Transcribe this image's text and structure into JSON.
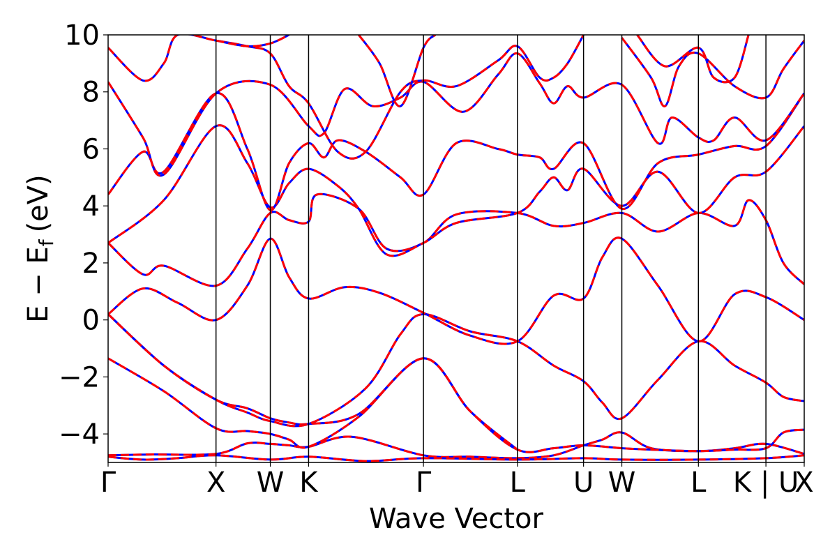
{
  "chart_data": {
    "type": "line",
    "title": "",
    "xlabel": "Wave Vector",
    "ylabel": "E − E",
    "ylabel_subscript": "f",
    "ylabel_unit": "(eV)",
    "ylim": [
      -5,
      10
    ],
    "xlim": [
      0,
      1
    ],
    "grid": false,
    "yticks": [
      -4,
      -2,
      0,
      2,
      4,
      6,
      8,
      10
    ],
    "ytick_labels": [
      "−4",
      "−2",
      "0",
      "2",
      "4",
      "6",
      "8",
      "10"
    ],
    "kpoints": [
      {
        "label": "Γ",
        "x": 0.0
      },
      {
        "label": "X",
        "x": 0.155
      },
      {
        "label": "W",
        "x": 0.233
      },
      {
        "label": "K",
        "x": 0.288
      },
      {
        "label": "Γ",
        "x": 0.453
      },
      {
        "label": "L",
        "x": 0.588
      },
      {
        "label": "U",
        "x": 0.683
      },
      {
        "label": "W",
        "x": 0.738
      },
      {
        "label": "L",
        "x": 0.848
      },
      {
        "label": "K | U",
        "x": 0.945
      },
      {
        "label": "X",
        "x": 1.0
      }
    ],
    "styles": [
      {
        "color": "#0000ff",
        "dash": "solid"
      },
      {
        "color": "#ff0000",
        "dash": "dashed"
      }
    ],
    "bands": [
      [
        [
          0,
          -4.75
        ],
        [
          0.06,
          -4.72
        ],
        [
          0.155,
          -4.7
        ],
        [
          0.2,
          -4.33
        ],
        [
          0.233,
          -4.35
        ],
        [
          0.26,
          -4.4
        ],
        [
          0.288,
          -4.45
        ],
        [
          0.35,
          -4.1
        ],
        [
          0.453,
          -4.75
        ],
        [
          0.52,
          -4.8
        ],
        [
          0.588,
          -4.85
        ],
        [
          0.64,
          -4.75
        ],
        [
          0.683,
          -4.4
        ],
        [
          0.71,
          -4.2
        ],
        [
          0.738,
          -3.95
        ],
        [
          0.78,
          -4.5
        ],
        [
          0.848,
          -4.6
        ],
        [
          0.9,
          -4.5
        ],
        [
          0.945,
          -4.35
        ],
        [
          1,
          -4.7
        ]
      ],
      [
        [
          0,
          -4.8
        ],
        [
          0.05,
          -4.9
        ],
        [
          0.1,
          -4.85
        ],
        [
          0.155,
          -4.75
        ],
        [
          0.233,
          -4.9
        ],
        [
          0.288,
          -4.8
        ],
        [
          0.37,
          -4.95
        ],
        [
          0.453,
          -4.85
        ],
        [
          0.588,
          -4.9
        ],
        [
          0.683,
          -4.85
        ],
        [
          0.738,
          -4.9
        ],
        [
          0.848,
          -4.9
        ],
        [
          0.945,
          -4.85
        ],
        [
          1,
          -4.75
        ]
      ],
      [
        [
          0,
          -1.35
        ],
        [
          0.08,
          -2.5
        ],
        [
          0.155,
          -3.8
        ],
        [
          0.2,
          -3.9
        ],
        [
          0.233,
          -4.0
        ],
        [
          0.26,
          -4.2
        ],
        [
          0.288,
          -4.45
        ],
        [
          0.36,
          -3.4
        ],
        [
          0.453,
          -1.35
        ],
        [
          0.52,
          -3.2
        ],
        [
          0.588,
          -4.55
        ],
        [
          0.64,
          -4.5
        ],
        [
          0.683,
          -4.4
        ],
        [
          0.738,
          -4.5
        ],
        [
          0.78,
          -4.55
        ],
        [
          0.848,
          -4.6
        ],
        [
          0.9,
          -4.55
        ],
        [
          0.945,
          -4.5
        ],
        [
          0.97,
          -3.95
        ],
        [
          1,
          -3.85
        ]
      ],
      [
        [
          0,
          0.2
        ],
        [
          0.08,
          -1.6
        ],
        [
          0.155,
          -2.8
        ],
        [
          0.2,
          -3.1
        ],
        [
          0.233,
          -3.45
        ],
        [
          0.26,
          -3.6
        ],
        [
          0.288,
          -3.65
        ],
        [
          0.36,
          -3.3
        ],
        [
          0.453,
          -1.35
        ],
        [
          0.52,
          -3.2
        ],
        [
          0.588,
          -4.55
        ]
      ],
      [
        [
          0,
          0.2
        ],
        [
          0.08,
          -1.6
        ],
        [
          0.155,
          -2.8
        ],
        [
          0.2,
          -3.25
        ],
        [
          0.233,
          -3.55
        ],
        [
          0.288,
          -3.65
        ],
        [
          0.37,
          -2.4
        ],
        [
          0.42,
          -0.5
        ],
        [
          0.453,
          0.2
        ],
        [
          0.52,
          -0.4
        ],
        [
          0.588,
          -0.75
        ],
        [
          0.64,
          -1.6
        ],
        [
          0.683,
          -2.15
        ],
        [
          0.71,
          -2.9
        ],
        [
          0.738,
          -3.45
        ],
        [
          0.79,
          -2.1
        ],
        [
          0.848,
          -0.75
        ],
        [
          0.9,
          -1.6
        ],
        [
          0.945,
          -2.2
        ],
        [
          0.97,
          -2.7
        ],
        [
          1,
          -2.85
        ]
      ],
      [
        [
          0,
          0.2
        ],
        [
          0.05,
          1.1
        ],
        [
          0.1,
          0.6
        ],
        [
          0.155,
          0.0
        ],
        [
          0.2,
          1.2
        ],
        [
          0.233,
          2.85
        ],
        [
          0.26,
          1.5
        ],
        [
          0.288,
          0.75
        ],
        [
          0.34,
          1.15
        ],
        [
          0.39,
          0.95
        ],
        [
          0.453,
          0.25
        ],
        [
          0.52,
          -0.55
        ],
        [
          0.588,
          -0.75
        ],
        [
          0.64,
          0.85
        ],
        [
          0.683,
          0.75
        ],
        [
          0.71,
          2.2
        ],
        [
          0.738,
          2.85
        ],
        [
          0.79,
          1.2
        ],
        [
          0.848,
          -0.75
        ],
        [
          0.9,
          0.9
        ],
        [
          0.945,
          0.8
        ],
        [
          1,
          0.0
        ]
      ],
      [
        [
          0,
          2.7
        ],
        [
          0.05,
          1.6
        ],
        [
          0.08,
          1.9
        ],
        [
          0.155,
          1.2
        ],
        [
          0.2,
          2.5
        ],
        [
          0.233,
          3.75
        ],
        [
          0.26,
          3.5
        ],
        [
          0.288,
          3.45
        ],
        [
          0.3,
          4.4
        ],
        [
          0.36,
          3.9
        ],
        [
          0.4,
          2.5
        ],
        [
          0.453,
          2.7
        ],
        [
          0.5,
          3.7
        ],
        [
          0.588,
          3.75
        ],
        [
          0.64,
          3.3
        ],
        [
          0.683,
          3.4
        ],
        [
          0.738,
          3.75
        ],
        [
          0.79,
          3.1
        ],
        [
          0.848,
          3.75
        ],
        [
          0.9,
          3.3
        ],
        [
          0.92,
          4.2
        ],
        [
          0.945,
          3.5
        ],
        [
          0.97,
          2.0
        ],
        [
          1,
          1.25
        ]
      ],
      [
        [
          0,
          2.7
        ],
        [
          0.08,
          4.2
        ],
        [
          0.155,
          6.8
        ],
        [
          0.2,
          5.5
        ],
        [
          0.233,
          3.95
        ],
        [
          0.26,
          4.8
        ],
        [
          0.288,
          5.3
        ],
        [
          0.33,
          4.7
        ],
        [
          0.36,
          3.9
        ],
        [
          0.4,
          2.3
        ],
        [
          0.453,
          2.7
        ],
        [
          0.5,
          3.4
        ],
        [
          0.588,
          3.75
        ],
        [
          0.62,
          4.5
        ],
        [
          0.64,
          5.0
        ],
        [
          0.66,
          4.55
        ],
        [
          0.683,
          5.3
        ],
        [
          0.738,
          4.0
        ],
        [
          0.79,
          5.2
        ],
        [
          0.848,
          3.75
        ],
        [
          0.9,
          5.0
        ],
        [
          0.945,
          5.2
        ],
        [
          1,
          6.8
        ]
      ],
      [
        [
          0,
          4.4
        ],
        [
          0.05,
          5.9
        ],
        [
          0.08,
          5.2
        ],
        [
          0.155,
          7.95
        ],
        [
          0.2,
          6.0
        ],
        [
          0.233,
          3.85
        ],
        [
          0.26,
          5.5
        ],
        [
          0.288,
          6.2
        ],
        [
          0.31,
          5.7
        ],
        [
          0.33,
          6.3
        ],
        [
          0.37,
          5.9
        ],
        [
          0.42,
          5.0
        ],
        [
          0.453,
          4.4
        ],
        [
          0.5,
          6.2
        ],
        [
          0.56,
          6.0
        ],
        [
          0.588,
          5.8
        ],
        [
          0.62,
          5.7
        ],
        [
          0.64,
          5.3
        ],
        [
          0.683,
          6.2
        ],
        [
          0.738,
          3.9
        ],
        [
          0.79,
          5.5
        ],
        [
          0.848,
          5.8
        ],
        [
          0.9,
          6.1
        ],
        [
          0.945,
          6.1
        ],
        [
          1,
          7.95
        ]
      ],
      [
        [
          0,
          8.35
        ],
        [
          0.05,
          6.4
        ],
        [
          0.08,
          5.1
        ],
        [
          0.155,
          7.95
        ],
        [
          0.233,
          8.25
        ],
        [
          0.288,
          6.8
        ],
        [
          0.31,
          6.55
        ],
        [
          0.34,
          8.1
        ],
        [
          0.38,
          7.5
        ],
        [
          0.42,
          7.8
        ],
        [
          0.453,
          8.35
        ],
        [
          0.51,
          7.3
        ],
        [
          0.56,
          8.6
        ],
        [
          0.588,
          9.35
        ],
        [
          0.62,
          8.3
        ],
        [
          0.64,
          7.6
        ],
        [
          0.66,
          8.2
        ],
        [
          0.683,
          7.8
        ],
        [
          0.738,
          8.25
        ],
        [
          0.79,
          6.2
        ],
        [
          0.81,
          7.1
        ],
        [
          0.848,
          6.4
        ],
        [
          0.87,
          6.3
        ],
        [
          0.9,
          7.1
        ],
        [
          0.945,
          6.3
        ],
        [
          1,
          7.95
        ]
      ],
      [
        [
          0,
          9.55
        ],
        [
          0.05,
          8.4
        ],
        [
          0.08,
          9.0
        ],
        [
          0.1,
          10.0
        ],
        [
          0.155,
          9.8
        ],
        [
          0.2,
          9.6
        ],
        [
          0.233,
          9.35
        ],
        [
          0.26,
          8.2
        ],
        [
          0.288,
          7.6
        ],
        [
          0.33,
          5.9
        ],
        [
          0.37,
          5.9
        ],
        [
          0.42,
          8.0
        ],
        [
          0.453,
          8.4
        ],
        [
          0.5,
          8.2
        ],
        [
          0.56,
          9.1
        ],
        [
          0.588,
          9.6
        ],
        [
          0.62,
          8.5
        ],
        [
          0.64,
          8.5
        ],
        [
          0.66,
          9.0
        ],
        [
          0.683,
          10.0
        ]
      ],
      [
        [
          0.155,
          9.8
        ],
        [
          0.2,
          9.6
        ],
        [
          0.233,
          9.7
        ],
        [
          0.26,
          10.0
        ]
      ],
      [
        [
          0.36,
          10.0
        ],
        [
          0.39,
          9.0
        ],
        [
          0.42,
          7.5
        ],
        [
          0.453,
          9.55
        ],
        [
          0.47,
          10.0
        ]
      ],
      [
        [
          0.738,
          9.9
        ],
        [
          0.78,
          8.5
        ],
        [
          0.8,
          7.5
        ],
        [
          0.82,
          8.9
        ],
        [
          0.848,
          9.35
        ],
        [
          0.9,
          8.2
        ],
        [
          0.945,
          7.8
        ],
        [
          0.97,
          8.8
        ],
        [
          1,
          9.8
        ]
      ],
      [
        [
          0.76,
          10.0
        ],
        [
          0.8,
          8.9
        ],
        [
          0.848,
          9.55
        ],
        [
          0.87,
          8.5
        ],
        [
          0.9,
          8.5
        ],
        [
          0.92,
          10.0
        ]
      ]
    ]
  }
}
